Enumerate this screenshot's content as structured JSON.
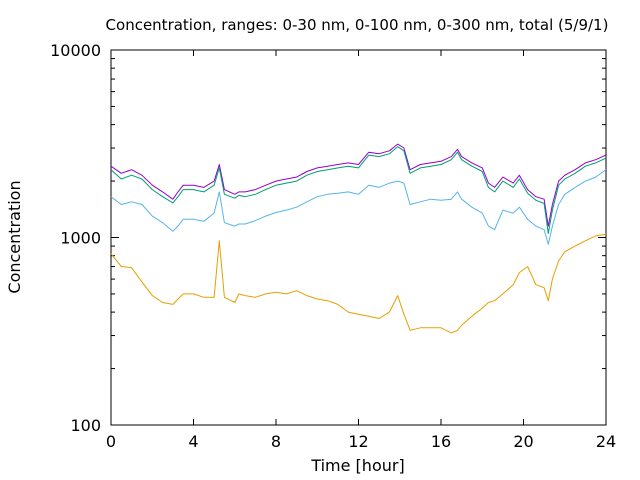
{
  "chart_data": {
    "type": "line",
    "title": "Concentration, ranges: 0-30 nm, 0-100 nm, 0-300 nm, total (5/9/1)",
    "xlabel": "Time [hour]",
    "ylabel": "Concentration",
    "xlim": [
      0,
      24
    ],
    "ylim": [
      100,
      10000
    ],
    "yscale": "log",
    "grid": false,
    "x_ticks": [
      {
        "value": 0,
        "label": "0"
      },
      {
        "value": 4,
        "label": "4"
      },
      {
        "value": 8,
        "label": "8"
      },
      {
        "value": 12,
        "label": "12"
      },
      {
        "value": 16,
        "label": "16"
      },
      {
        "value": 20,
        "label": "20"
      },
      {
        "value": 24,
        "label": "24"
      }
    ],
    "y_ticks": [
      {
        "value": 100,
        "label": "100"
      },
      {
        "value": 1000,
        "label": "1000"
      },
      {
        "value": 10000,
        "label": "10000"
      }
    ],
    "x": [
      0,
      0.5,
      1,
      1.5,
      2,
      2.5,
      3,
      3.25,
      3.5,
      4,
      4.5,
      5,
      5.25,
      5.5,
      6,
      6.2,
      6.5,
      7,
      7.5,
      8,
      8.5,
      9,
      9.5,
      10,
      10.5,
      11,
      11.5,
      12,
      12.5,
      13,
      13.5,
      13.9,
      14.2,
      14.5,
      15,
      15.5,
      16,
      16.5,
      16.8,
      17,
      17.5,
      18,
      18.3,
      18.6,
      19,
      19.5,
      19.8,
      20.2,
      20.6,
      21,
      21.2,
      21.4,
      21.7,
      22,
      22.5,
      23,
      23.5,
      24
    ],
    "series": [
      {
        "color": "#9400d3",
        "values": [
          2400,
          2200,
          2300,
          2150,
          1900,
          1750,
          1600,
          1750,
          1900,
          1900,
          1850,
          2000,
          2450,
          1800,
          1700,
          1750,
          1750,
          1800,
          1900,
          2000,
          2050,
          2100,
          2250,
          2350,
          2400,
          2450,
          2500,
          2450,
          2850,
          2800,
          2900,
          3150,
          3000,
          2300,
          2450,
          2500,
          2550,
          2700,
          2950,
          2700,
          2500,
          2350,
          1950,
          1850,
          2100,
          1950,
          2150,
          1800,
          1650,
          1600,
          1150,
          1500,
          2000,
          2150,
          2300,
          2500,
          2600,
          2750
        ]
      },
      {
        "color": "#009e73",
        "values": [
          2300,
          2050,
          2150,
          2050,
          1800,
          1650,
          1530,
          1650,
          1800,
          1800,
          1750,
          1900,
          2350,
          1700,
          1620,
          1680,
          1650,
          1700,
          1800,
          1900,
          1950,
          2000,
          2150,
          2250,
          2300,
          2350,
          2400,
          2350,
          2750,
          2700,
          2800,
          3050,
          2900,
          2200,
          2350,
          2400,
          2450,
          2600,
          2850,
          2600,
          2400,
          2250,
          1850,
          1750,
          2000,
          1850,
          2050,
          1720,
          1580,
          1520,
          1050,
          1400,
          1900,
          2050,
          2200,
          2400,
          2500,
          2650
        ]
      },
      {
        "color": "#56b4e9",
        "values": [
          1650,
          1500,
          1550,
          1500,
          1300,
          1200,
          1080,
          1150,
          1250,
          1250,
          1220,
          1350,
          1750,
          1200,
          1150,
          1180,
          1180,
          1230,
          1300,
          1360,
          1400,
          1450,
          1550,
          1650,
          1700,
          1720,
          1750,
          1700,
          1900,
          1850,
          1950,
          2000,
          1950,
          1500,
          1550,
          1600,
          1580,
          1600,
          1750,
          1600,
          1450,
          1350,
          1150,
          1100,
          1400,
          1350,
          1450,
          1250,
          1150,
          1100,
          920,
          1150,
          1500,
          1700,
          1850,
          2000,
          2100,
          2300
        ]
      },
      {
        "color": "#e69f00",
        "values": [
          820,
          700,
          690,
          580,
          490,
          450,
          440,
          470,
          500,
          500,
          480,
          480,
          960,
          480,
          450,
          500,
          490,
          480,
          500,
          510,
          500,
          520,
          490,
          470,
          460,
          440,
          400,
          390,
          380,
          370,
          400,
          490,
          390,
          320,
          330,
          330,
          330,
          310,
          320,
          340,
          380,
          420,
          450,
          460,
          500,
          560,
          650,
          700,
          560,
          540,
          460,
          600,
          750,
          840,
          900,
          960,
          1020,
          1040
        ]
      }
    ]
  }
}
